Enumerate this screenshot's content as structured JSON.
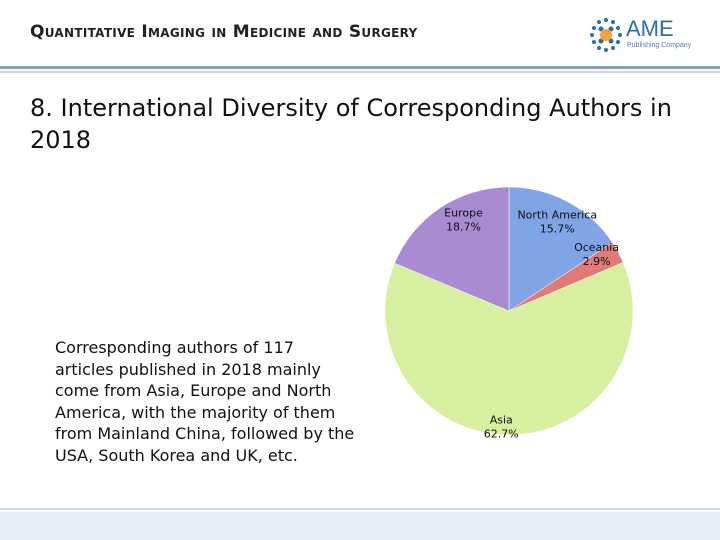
{
  "header": {
    "journal_title": "Quantitative Imaging in Medicine and Surgery",
    "logo_text": "AME",
    "logo_sub": "Publishing Company"
  },
  "slide": {
    "title": "8. International Diversity of Corresponding Authors in 2018",
    "body": "Corresponding authors of 117 articles published in 2018 mainly come from Asia, Europe and North America, with the majority of them from Mainland China, followed by the USA, South Korea and UK, etc."
  },
  "chart_data": {
    "type": "pie",
    "slices": [
      {
        "label": "North America",
        "value": 15.7,
        "display": "15.7%",
        "color": "#7fa5e6"
      },
      {
        "label": "Oceania",
        "value": 2.9,
        "display": "2.9%",
        "color": "#e07a78"
      },
      {
        "label": "Asia",
        "value": 62.7,
        "display": "62.7%",
        "color": "#d6f0a0"
      },
      {
        "label": "Europe",
        "value": 18.7,
        "display": "18.7%",
        "color": "#a88bd0"
      }
    ]
  },
  "colors": {
    "accent": "#2b6cb4",
    "rule": "#7fa2c8",
    "footer": "#e6edf6"
  }
}
